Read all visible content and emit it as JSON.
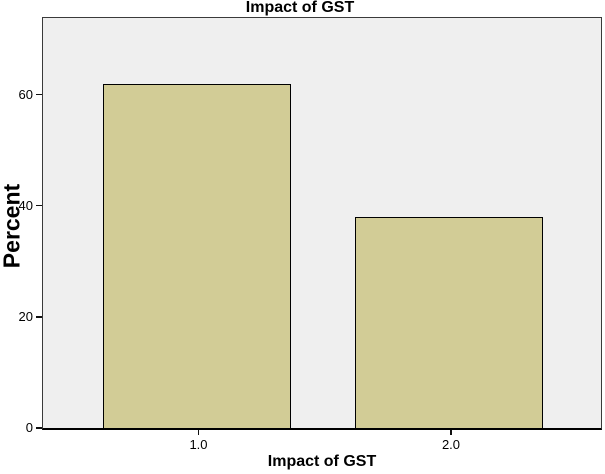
{
  "chart_data": {
    "type": "bar",
    "title": "Impact of GST",
    "xlabel": "Impact of GST",
    "ylabel": "Percent",
    "categories": [
      "1.0",
      "2.0"
    ],
    "values": [
      62,
      38
    ],
    "yticks": [
      0,
      20,
      40,
      60
    ],
    "ylim": [
      0,
      73.7
    ],
    "grid": false,
    "legend": "none",
    "bar_fill_color": "#d2cc96",
    "bar_border_color": "#000000",
    "plot_background_color": "#efefef",
    "figure_background_color": "#ffffff"
  }
}
